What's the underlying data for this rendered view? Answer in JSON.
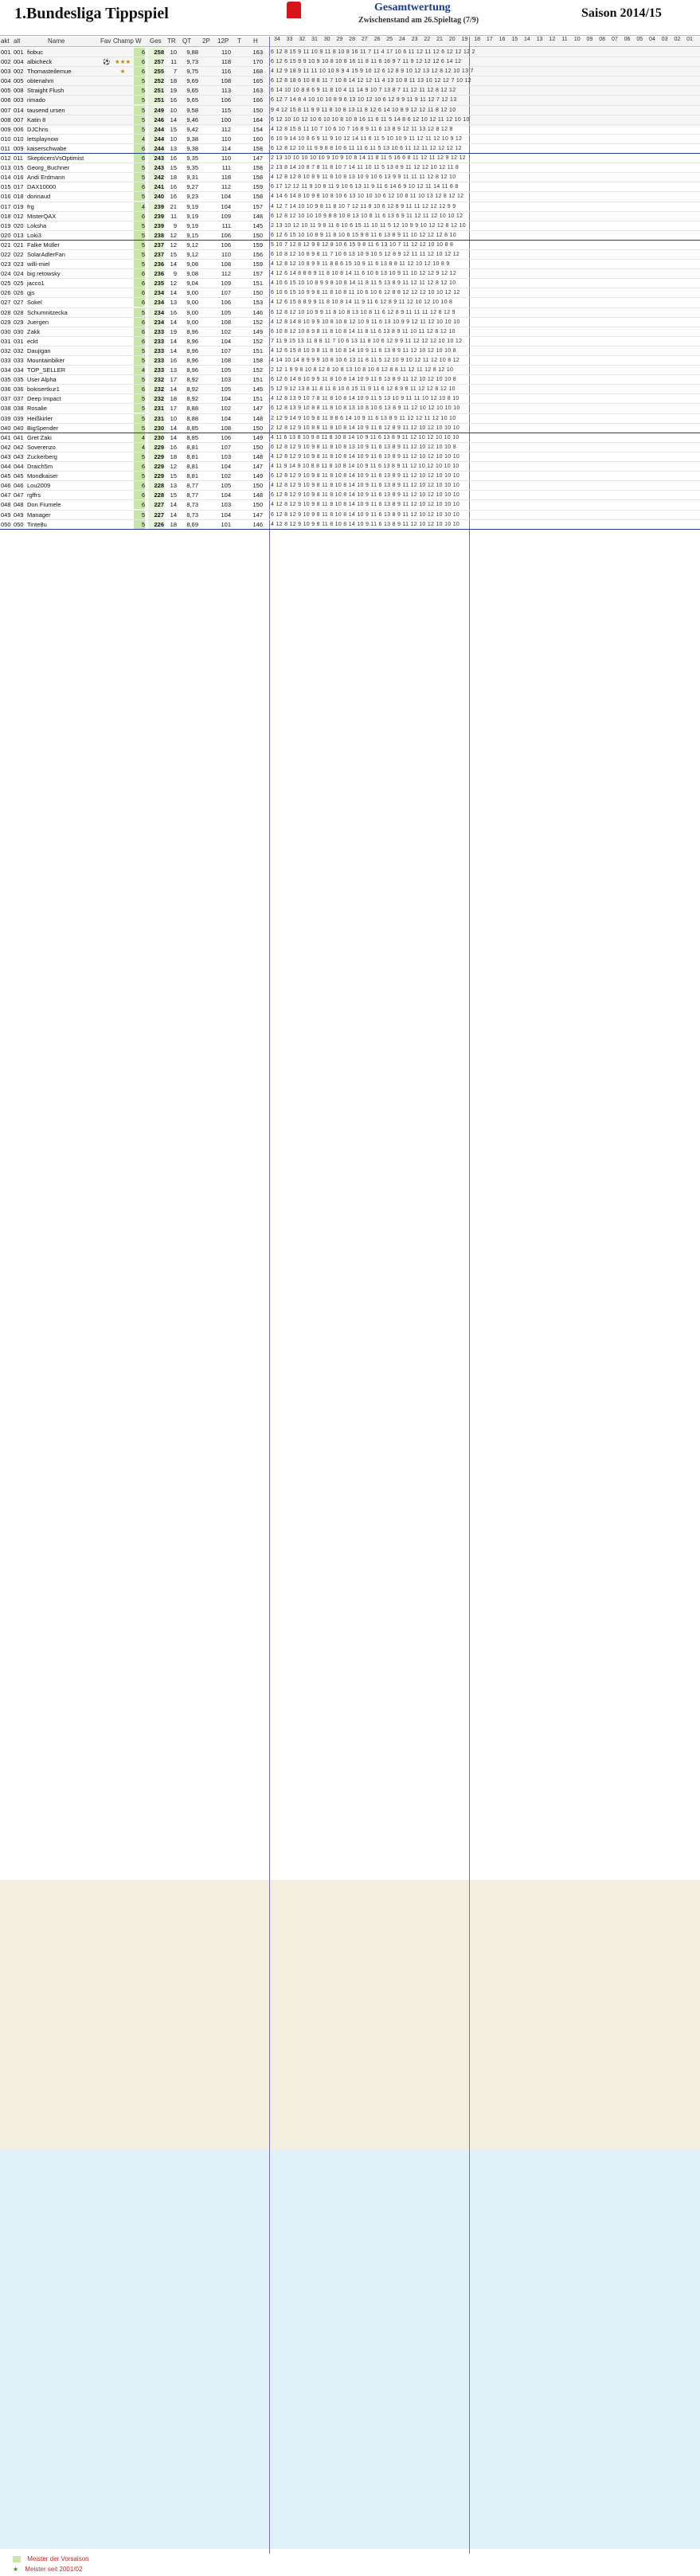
{
  "header": {
    "title": "1.Bundesliga Tippspiel",
    "subtitle": "Gesamtwertung",
    "status": "Zwischenstand am 26.Spieltag (7/9)",
    "season": "Saison 2014/15"
  },
  "columns": {
    "pos": "akt",
    "at": "alt",
    "name": "Name",
    "fav": "Fav",
    "champ": "Champ",
    "w": "W",
    "ges": "Ges",
    "tr": "TR",
    "qt": "QT",
    "tp2": "2P",
    "z12": "12P",
    "t": "T",
    "h": "H",
    "md": [
      "34",
      "33",
      "32",
      "31",
      "30",
      "29",
      "28",
      "27",
      "26",
      "25",
      "24",
      "23",
      "22",
      "21",
      "20",
      "19",
      "18",
      "17",
      "16",
      "15",
      "14",
      "13",
      "12",
      "11",
      "10",
      "09",
      "08",
      "07",
      "06",
      "05",
      "04",
      "03",
      "02",
      "01"
    ]
  },
  "rows": [
    {
      "pos": "001",
      "at": "001",
      "name": "fiobuc",
      "fav": "",
      "champ": "",
      "w": "6",
      "ges": "258",
      "tr": "10",
      "qt": "9,88",
      "z12": "110",
      "t": "",
      "h": "163",
      "md": "6 12  8 15  9 11  10  9  11  8 10  8 16 11  7  11  4 17 10  6 11 12 11 12  6 12 12 12  2"
    },
    {
      "pos": "002",
      "at": "004",
      "name": "albicheck",
      "fav": "⚽",
      "champ": "★★★",
      "w": "6",
      "ges": "257",
      "tr": "11",
      "qt": "9,73",
      "z12": "118",
      "t": "",
      "h": "170",
      "md": "6 12  6 15  9  9  10  9  10  8 10  8 16 11  8  11  6 16  9  7 11  9 12 12 12  6 14 12"
    },
    {
      "pos": "003",
      "at": "002",
      "name": "Thomasteilemue",
      "fav": "",
      "champ": "★",
      "w": "6",
      "ges": "255",
      "tr": "7",
      "qt": "9,75",
      "z12": "116",
      "t": "",
      "h": "168",
      "md": "4 12  9 18  9 11  11 10  10  8  9  4 15  9 10  12  6 12  8  9 10 12 13 12  8 12 10 13  7"
    },
    {
      "pos": "004",
      "at": "005",
      "name": "obtenahm",
      "fav": "",
      "champ": "",
      "w": "5",
      "ges": "252",
      "tr": "18",
      "qt": "9,69",
      "z12": "108",
      "t": "",
      "h": "165",
      "md": "6 12  8 18  6 10   8  8  11  7 10  8 14 12 12  11  4 13 10  8 11 13 10 12 12  7 10 12"
    },
    {
      "pos": "005",
      "at": "008",
      "name": "Straight Flush",
      "fav": "",
      "champ": "",
      "w": "5",
      "ges": "251",
      "tr": "19",
      "qt": "9,65",
      "z12": "113",
      "t": "",
      "h": "163",
      "md": "6 14 10 10  8  8   6  9  11  8 10  4 11 14  9  10  7 13  8  7 11 12 11 12  8 12 12"
    },
    {
      "pos": "006",
      "at": "003",
      "name": "rimado",
      "fav": "",
      "champ": "",
      "w": "5",
      "ges": "251",
      "tr": "16",
      "qt": "9,65",
      "z12": "106",
      "t": "",
      "h": "166",
      "md": "6 12  7 14  8  4  10 10  10  8  9  6 13 10 12  10  6 12  9  9 11  9 11 12  7 12 13"
    },
    {
      "pos": "007",
      "at": "014",
      "name": "tausend ursen",
      "fav": "",
      "champ": "",
      "w": "5",
      "ges": "249",
      "tr": "10",
      "qt": "9,58",
      "z12": "115",
      "t": "",
      "h": "150",
      "md": "9  4 12 15  8 11   9  9  11  8 10  8 13 11  8  12  6 14 10  8  9 12 12 11  8 12 10"
    },
    {
      "pos": "008",
      "at": "007",
      "name": "Katin 8",
      "fav": "",
      "champ": "",
      "w": "5",
      "ges": "246",
      "tr": "14",
      "qt": "9,46",
      "z12": "100",
      "t": "",
      "h": "164",
      "md": "6 12 10 10 12 10   6 10  10  8 10  8 16 11  6  11  5 14  8  6 12 10 12 11 12 10 10"
    },
    {
      "pos": "009",
      "at": "006",
      "name": "DJChris",
      "fav": "",
      "champ": "",
      "w": "5",
      "ges": "244",
      "tr": "15",
      "qt": "9,42",
      "z12": "112",
      "t": "",
      "h": "154",
      "md": "4 12  8 15  8 11  10  7  10  6 10  7 16  8  9  11  6 13  8  9 12 11 13 12  8 12  8"
    },
    {
      "pos": "010",
      "at": "010",
      "name": "letsplaynow",
      "fav": "",
      "champ": "",
      "w": "4",
      "ges": "244",
      "tr": "10",
      "qt": "9,38",
      "z12": "110",
      "t": "",
      "h": "160",
      "md": "6 10  9 14 10  8   6  9  11  9 10 12 14 11  6  11  5 10 10  9 11 12 11 12 10  9 12"
    },
    {
      "pos": "011",
      "at": "009",
      "name": "kaiserschwabe",
      "fav": "",
      "champ": "",
      "w": "6",
      "ges": "244",
      "tr": "13",
      "qt": "9,38",
      "z12": "114",
      "t": "",
      "h": "158",
      "md": "6 12  8 12 10 11   9  9   8  8 10  6 11 11  6  11  5 13 10  6 11 12 11 12 12 12 12",
      "sep": true
    },
    {
      "pos": "012",
      "at": "011",
      "name": "SkepticersVsOptimist",
      "fav": "",
      "champ": "",
      "w": "6",
      "ges": "243",
      "tr": "16",
      "qt": "9,35",
      "z12": "110",
      "t": "",
      "h": "147",
      "md": "2 13 10 10 10 10  10  9  10  9 10  8 14 11  8  11  5 16  6  8 11 12 11 12  9 12 12"
    },
    {
      "pos": "013",
      "at": "015",
      "name": "Georg_Buchner",
      "fav": "",
      "champ": "",
      "w": "5",
      "ges": "243",
      "tr": "15",
      "qt": "9,35",
      "z12": "111",
      "t": "",
      "h": "158",
      "md": "2 13  8 14 10  8   7  8  11  8 10  7 14 11 10  11  5 13  8  9 11 12 12 10 12 11  8"
    },
    {
      "pos": "014",
      "at": "016",
      "name": "Andi Erdmann",
      "fav": "",
      "champ": "",
      "w": "5",
      "ges": "242",
      "tr": "18",
      "qt": "9,31",
      "z12": "118",
      "t": "",
      "h": "158",
      "md": "4 12  8 12  8 10   8  9  11  8 10  8 13 10  9  10  6 13  9  9 11 11 11 12  8 12 10"
    },
    {
      "pos": "015",
      "at": "017",
      "name": "DAX10000",
      "fav": "",
      "champ": "",
      "w": "6",
      "ges": "241",
      "tr": "16",
      "qt": "9,27",
      "z12": "112",
      "t": "",
      "h": "159",
      "md": "6 17 12 12 11  9  10  8  11  9 10  6 13 11  9  11  6 14  6  9 10 12 11 14 11  8  8"
    },
    {
      "pos": "016",
      "at": "018",
      "name": "dorinaud",
      "fav": "",
      "champ": "",
      "w": "5",
      "ges": "240",
      "tr": "16",
      "qt": "9,23",
      "z12": "104",
      "t": "",
      "h": "158",
      "md": "4 14  6 14  8 10   9  8  10  8 10  6 13 10 10  10  6 12 10  8 11 10 13 12  8 12 12"
    },
    {
      "pos": "017",
      "at": "019",
      "name": "frg",
      "fav": "",
      "champ": "",
      "w": "4",
      "ges": "239",
      "tr": "21",
      "qt": "9,19",
      "z12": "104",
      "t": "",
      "h": "157",
      "md": "4 12  7 14 10 10   9  8  11  8 10  7 12 11  8  10  6 12  8  9 11 11 12 12 12  9  9"
    },
    {
      "pos": "018",
      "at": "012",
      "name": "MisterQAX",
      "fav": "",
      "champ": "",
      "w": "6",
      "ges": "239",
      "tr": "11",
      "qt": "9,19",
      "z12": "109",
      "t": "",
      "h": "148",
      "md": "6 12  8 12 10 10  10  9   8  8 10  8 13 10  8  11  6 13  6  9 11 12 11 12 10 10 12"
    },
    {
      "pos": "019",
      "at": "020",
      "name": "Loksha",
      "fav": "",
      "champ": "",
      "w": "5",
      "ges": "239",
      "tr": "9",
      "qt": "9,19",
      "z12": "111",
      "t": "",
      "h": "145",
      "md": "2 13 10 12 10 11   9  8  11  8 10  6 15 11 10  11  5 12 10  9  9 10 12 12  8 12 10"
    },
    {
      "pos": "020",
      "at": "013",
      "name": "Loki3",
      "fav": "",
      "champ": "",
      "w": "5",
      "ges": "238",
      "tr": "12",
      "qt": "9,15",
      "z12": "106",
      "t": "",
      "h": "150",
      "md": "6 12  6 15 10 10   8  9  11  8 10  6 15  9  8  11  6 13  8  9 11 10 12 12 12  8 10",
      "sep": true
    },
    {
      "pos": "021",
      "at": "021",
      "name": "Falke Müller",
      "fav": "",
      "champ": "",
      "w": "5",
      "ges": "237",
      "tr": "12",
      "qt": "9,12",
      "z12": "106",
      "t": "",
      "h": "159",
      "md": "5 10  7 12  8 12   9  8  12  8 10  6 15  9  8  11  6 13 10  7 11 12 12 10 10  8  8"
    },
    {
      "pos": "022",
      "at": "022",
      "name": "SolarAdlerFan",
      "fav": "",
      "champ": "",
      "w": "5",
      "ges": "237",
      "tr": "15",
      "qt": "9,12",
      "z12": "110",
      "t": "",
      "h": "156",
      "md": "6 10  8 12 10  8   9  8  11  7 10  6 13 10  9  10  5 12  8  9 12 11 11 12 10 12 12"
    },
    {
      "pos": "023",
      "at": "023",
      "name": "willi-miel",
      "fav": "",
      "champ": "",
      "w": "5",
      "ges": "236",
      "tr": "14",
      "qt": "9,08",
      "z12": "108",
      "t": "",
      "h": "159",
      "md": "4 12  8 12 10  8   9  9  11  8  8  6 15 10  9  11  6 13  8  8 11 12 10 12 10  8  9"
    },
    {
      "pos": "024",
      "at": "024",
      "name": "big retowsky",
      "fav": "",
      "champ": "",
      "w": "6",
      "ges": "236",
      "tr": "9",
      "qt": "9,08",
      "z12": "112",
      "t": "",
      "h": "157",
      "md": "4 12  6 14  8  8   8  9  11  8 10  8 14 11  6  10  6 13 10  9 11 10 12 12  9 12 12"
    },
    {
      "pos": "025",
      "at": "025",
      "name": "jacco1",
      "fav": "",
      "champ": "",
      "w": "6",
      "ges": "235",
      "tr": "12",
      "qt": "9,04",
      "z12": "109",
      "t": "",
      "h": "151",
      "md": "4 10  6 15 10 10   8  9   9  8 10  8 14 11  8  11  5 13  8  9 11 12 11 12  8 12 10"
    },
    {
      "pos": "026",
      "at": "026",
      "name": "gjs",
      "fav": "",
      "champ": "",
      "w": "6",
      "ges": "234",
      "tr": "14",
      "qt": "9,00",
      "z12": "107",
      "t": "",
      "h": "150",
      "md": "6 10  6 15 10  9   9  8  11  8 10  8 11 10  6  10  6 12  8  8 12 12 12 10 10 12 12"
    },
    {
      "pos": "027",
      "at": "027",
      "name": "Sokel",
      "fav": "",
      "champ": "",
      "w": "6",
      "ges": "234",
      "tr": "13",
      "qt": "9,00",
      "z12": "106",
      "t": "",
      "h": "153",
      "md": "4 12  6 15  8  8   9  9  11  8 10  8 14 11  9  11  6 12  8  9 11 12 10 12 10 10  8"
    },
    {
      "pos": "028",
      "at": "028",
      "name": "Schumnitzecka",
      "fav": "",
      "champ": "",
      "w": "5",
      "ges": "234",
      "tr": "16",
      "qt": "9,00",
      "z12": "105",
      "t": "",
      "h": "146",
      "md": "6 12  8 12 10 10   9  9  11  8 10  8 13 10  8  11  6 12  8  9 11 11 11 12  8 12  9"
    },
    {
      "pos": "029",
      "at": "029",
      "name": "Juergen",
      "fav": "",
      "champ": "",
      "w": "6",
      "ges": "234",
      "tr": "14",
      "qt": "9,00",
      "z12": "108",
      "t": "",
      "h": "152",
      "md": "4 12  8 14  8 10   9  9  10  8 10  8 12 10  9  11  6 13 10  9  9 12 11 12 10 10 10"
    },
    {
      "pos": "030",
      "at": "030",
      "name": "Zakk",
      "fav": "",
      "champ": "",
      "w": "6",
      "ges": "233",
      "tr": "19",
      "qt": "8,96",
      "z12": "102",
      "t": "",
      "h": "149",
      "md": "6 10  8 12 10  8   9  8  11  8 10  8 14 11  8  11  6 13  8  9 11 10 11 12  8 12 10"
    },
    {
      "pos": "031",
      "at": "031",
      "name": "eckt",
      "fav": "",
      "champ": "",
      "w": "6",
      "ges": "233",
      "tr": "14",
      "qt": "8,96",
      "z12": "104",
      "t": "",
      "h": "152",
      "md": "7 11  9 15 13 11   8  8  11  7 10  6 13 11  8  10  6 12  9  9 11 12 12 12 10 10 12"
    },
    {
      "pos": "032",
      "at": "032",
      "name": "Daujigan",
      "fav": "",
      "champ": "",
      "w": "5",
      "ges": "233",
      "tr": "14",
      "qt": "8,96",
      "z12": "107",
      "t": "",
      "h": "151",
      "md": "4 12  6 15  8 10   9  8  11  8 10  8 14 10  9  11  6 13  8  9 11 12 10 12 10 10  8"
    },
    {
      "pos": "033",
      "at": "033",
      "name": "Mountainbiker",
      "fav": "",
      "champ": "",
      "w": "5",
      "ges": "233",
      "tr": "16",
      "qt": "8,96",
      "z12": "108",
      "t": "",
      "h": "158",
      "md": "4 14 10 14  8  9   9  9  10  8 10  6 13 11  8  11  5 12 10  9 10 12 11 12 10  8 12"
    },
    {
      "pos": "034",
      "at": "034",
      "name": "TOP_SELLER",
      "fav": "",
      "champ": "",
      "w": "4",
      "ges": "233",
      "tr": "13",
      "qt": "8,96",
      "z12": "105",
      "t": "",
      "h": "152",
      "md": "2 12  1  9  9  8  10  8  12  6 10  8 13 10  8  10  6 12  8  8 11 12 11 12  8 12 10"
    },
    {
      "pos": "035",
      "at": "035",
      "name": "User Alpha",
      "fav": "",
      "champ": "",
      "w": "5",
      "ges": "232",
      "tr": "17",
      "qt": "8,92",
      "z12": "103",
      "t": "",
      "h": "151",
      "md": "6 12  6 14  8 10   9  9  11  8 10  8 14 10  9  11  6 13  8  9 11 12 10 12 10 10  8"
    },
    {
      "pos": "036",
      "at": "036",
      "name": "bokisertkur1",
      "fav": "",
      "champ": "",
      "w": "6",
      "ges": "232",
      "tr": "14",
      "qt": "8,92",
      "z12": "105",
      "t": "",
      "h": "145",
      "md": "5 12  9 12 13  8  11  8  11  8 10  6 15 11  9  11  6 12  8  9  8 11 12 12  8 12 10"
    },
    {
      "pos": "037",
      "at": "037",
      "name": "Deep Impact",
      "fav": "",
      "champ": "",
      "w": "5",
      "ges": "232",
      "tr": "18",
      "qt": "8,92",
      "z12": "104",
      "t": "",
      "h": "151",
      "md": "4 12  8 13  9 10   7  8  11  8 10  8 14 10  9  11  5 13 10  9 11 11 10 12 10  8 10"
    },
    {
      "pos": "038",
      "at": "038",
      "name": "Rosalie",
      "fav": "",
      "champ": "",
      "w": "5",
      "ges": "231",
      "tr": "17",
      "qt": "8,88",
      "z12": "102",
      "t": "",
      "h": "147",
      "md": "6 12  8 13  9 10   8  8  11  8 10  8 13 10  8  10  6 13  8  9 11 12 10 12 10 10 10"
    },
    {
      "pos": "039",
      "at": "039",
      "name": "Heißkirler",
      "fav": "",
      "champ": "",
      "w": "5",
      "ges": "231",
      "tr": "10",
      "qt": "8,88",
      "z12": "104",
      "t": "",
      "h": "148",
      "md": "2 12  9 14  9 10   9  8  11  8  8  6 14 10  9  11  6 13  8  9 11 12 12 11 12 10 10"
    },
    {
      "pos": "040",
      "at": "040",
      "name": "BigSpender",
      "fav": "",
      "champ": "",
      "w": "5",
      "ges": "230",
      "tr": "14",
      "qt": "8,85",
      "z12": "108",
      "t": "",
      "h": "150",
      "md": "2 12  8 12  9 10   8  8  11  8 10  8 14 10  9  11  6 12  8  9 11 12 10 12 10 10 10",
      "sep": true
    },
    {
      "pos": "041",
      "at": "041",
      "name": "Gret Zaki",
      "fav": "",
      "champ": "",
      "w": "4",
      "ges": "230",
      "tr": "14",
      "qt": "8,85",
      "z12": "106",
      "t": "",
      "h": "149",
      "md": "4 11  6 13  8 10   9  8  11  8 10  8 14 10  9  11  6 13  8  9 11 12 10 12 10 10 10"
    },
    {
      "pos": "042",
      "at": "042",
      "name": "Soverenzo",
      "fav": "",
      "champ": "",
      "w": "4",
      "ges": "229",
      "tr": "16",
      "qt": "8,81",
      "z12": "107",
      "t": "",
      "h": "150",
      "md": "6 12  8 12  9 10   9  8  11  8 10  8 13 10  9  11  6 13  8  9 11 12 10 12 10 10  8"
    },
    {
      "pos": "043",
      "at": "043",
      "name": "Zuckerberg",
      "fav": "",
      "champ": "",
      "w": "5",
      "ges": "229",
      "tr": "18",
      "qt": "8,81",
      "z12": "103",
      "t": "",
      "h": "148",
      "md": "4 12  8 12  9 10   9  8  11  8 10  8 14 10  9  11  6 13  8  9 11 12 10 12 10 10 10"
    },
    {
      "pos": "044",
      "at": "044",
      "name": "Draich5m",
      "fav": "",
      "champ": "",
      "w": "6",
      "ges": "229",
      "tr": "12",
      "qt": "8,81",
      "z12": "104",
      "t": "",
      "h": "147",
      "md": "4 11  9 14  9 10   8  8  11  8 10  8 14 10  9  11  6 13  8  9 11 12 10 12 10 10 10"
    },
    {
      "pos": "045",
      "at": "045",
      "name": "Mondkaiser",
      "fav": "",
      "champ": "",
      "w": "5",
      "ges": "229",
      "tr": "15",
      "qt": "8,81",
      "z12": "102",
      "t": "",
      "h": "149",
      "md": "6 12  8 12  9 10   9  8  11  8 10  8 14 10  9  11  6 13  8  9 11 12 10 12 10 10 10"
    },
    {
      "pos": "046",
      "at": "046",
      "name": "Lou2009",
      "fav": "",
      "champ": "",
      "w": "6",
      "ges": "228",
      "tr": "13",
      "qt": "8,77",
      "z12": "105",
      "t": "",
      "h": "150",
      "md": "4 12  8 12  9 10   9  8  11  8 10  8 14 10  9  11  6 13  8  9 11 12 10 12 10 10 10"
    },
    {
      "pos": "047",
      "at": "047",
      "name": "rgffrs",
      "fav": "",
      "champ": "",
      "w": "6",
      "ges": "228",
      "tr": "15",
      "qt": "8,77",
      "z12": "104",
      "t": "",
      "h": "148",
      "md": "6 12  8 12  9 10   9  8  11  8 10  8 14 10  9  11  6 13  8  9 11 12 10 12 10 10 10"
    },
    {
      "pos": "048",
      "at": "048",
      "name": "Don Fiumele",
      "fav": "",
      "champ": "",
      "w": "6",
      "ges": "227",
      "tr": "14",
      "qt": "8,73",
      "z12": "103",
      "t": "",
      "h": "150",
      "md": "4 12  8 12  9 10   9  8  11  8 10  8 14 10  9  11  6 13  8  9 11 12 10 12 10 10 10"
    },
    {
      "pos": "049",
      "at": "049",
      "name": "Manager",
      "fav": "",
      "champ": "",
      "w": "5",
      "ges": "227",
      "tr": "14",
      "qt": "8,73",
      "z12": "104",
      "t": "",
      "h": "147",
      "md": "6 12  8 12  9 10   9  8  11  8 10  8 14 10  9  11  6 13  8  9 11 12 10 12 10 10 10"
    },
    {
      "pos": "050",
      "at": "050",
      "name": "Tinte8u",
      "fav": "",
      "champ": "",
      "w": "5",
      "ges": "226",
      "tr": "18",
      "qt": "8,69",
      "z12": "101",
      "t": "",
      "h": "146",
      "md": "4 12  8 12  9 10   9  8  11  8 10  8 14 10  9  11  6 13  8  9 11 12 10 12 10 10 10",
      "sep": true
    }
  ],
  "legend": {
    "item1": "Meister der Vorsaison",
    "item2": "Meister seit 2001/02"
  }
}
